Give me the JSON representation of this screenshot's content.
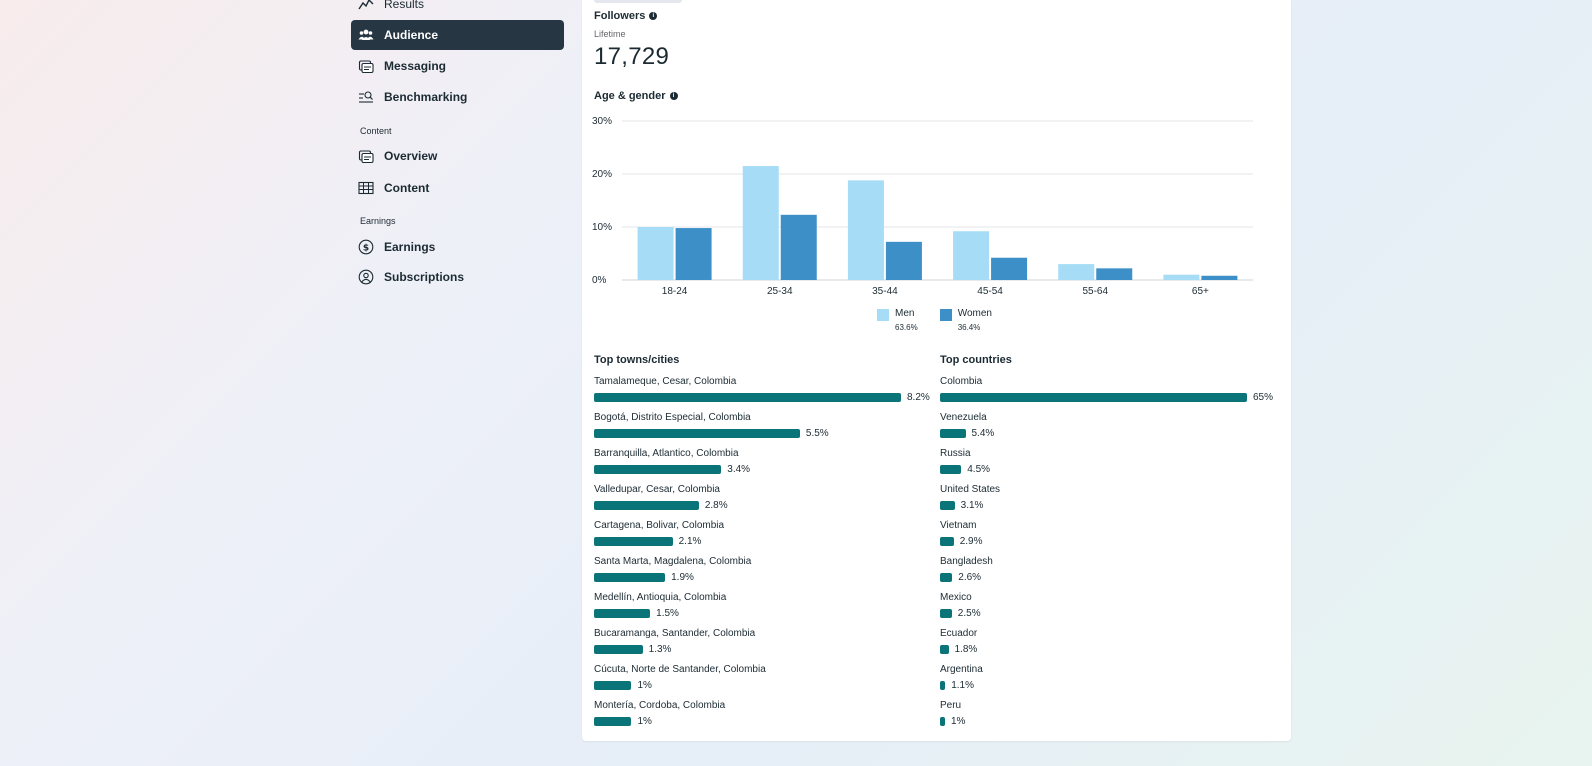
{
  "sidebar": {
    "items": [
      {
        "label": "Results",
        "icon": "results-icon",
        "active": false
      },
      {
        "label": "Audience",
        "icon": "audience-icon",
        "active": true
      },
      {
        "label": "Messaging",
        "icon": "messaging-icon",
        "active": false
      },
      {
        "label": "Benchmarking",
        "icon": "benchmarking-icon",
        "active": false
      }
    ],
    "content_section": "Content",
    "content_items": [
      {
        "label": "Overview",
        "icon": "overview-icon"
      },
      {
        "label": "Content",
        "icon": "table-icon"
      }
    ],
    "earnings_section": "Earnings",
    "earnings_items": [
      {
        "label": "Earnings",
        "icon": "dollar-icon"
      },
      {
        "label": "Subscriptions",
        "icon": "subscriptions-icon"
      }
    ]
  },
  "followers": {
    "title": "Followers",
    "period": "Lifetime",
    "value": "17,729"
  },
  "age_gender": {
    "title": "Age & gender"
  },
  "chart_data": {
    "type": "bar",
    "categories": [
      "18-24",
      "25-34",
      "35-44",
      "45-54",
      "55-64",
      "65+"
    ],
    "series": [
      {
        "name": "Men",
        "share": "63.6%",
        "color": "#a6dcf5",
        "values": [
          10,
          21.5,
          18.8,
          9.2,
          3,
          1
        ]
      },
      {
        "name": "Women",
        "share": "36.4%",
        "color": "#3d8fc8",
        "values": [
          9.8,
          12.3,
          7.2,
          4.2,
          2.2,
          0.8
        ]
      }
    ],
    "yticks": [
      "0%",
      "10%",
      "20%",
      "30%"
    ],
    "ylim": [
      0,
      30
    ],
    "grid": true,
    "legend": "bottom-center"
  },
  "top_cities": {
    "title": "Top towns/cities",
    "max": 8.2,
    "items": [
      {
        "label": "Tamalameque, Cesar, Colombia",
        "value": 8.2,
        "display": "8.2%"
      },
      {
        "label": "Bogotá, Distrito Especial, Colombia",
        "value": 5.5,
        "display": "5.5%"
      },
      {
        "label": "Barranquilla, Atlantico, Colombia",
        "value": 3.4,
        "display": "3.4%"
      },
      {
        "label": "Valledupar, Cesar, Colombia",
        "value": 2.8,
        "display": "2.8%"
      },
      {
        "label": "Cartagena, Bolivar, Colombia",
        "value": 2.1,
        "display": "2.1%"
      },
      {
        "label": "Santa Marta, Magdalena, Colombia",
        "value": 1.9,
        "display": "1.9%"
      },
      {
        "label": "Medellín, Antioquia, Colombia",
        "value": 1.5,
        "display": "1.5%"
      },
      {
        "label": "Bucaramanga, Santander, Colombia",
        "value": 1.3,
        "display": "1.3%"
      },
      {
        "label": "Cúcuta, Norte de Santander, Colombia",
        "value": 1,
        "display": "1%"
      },
      {
        "label": "Montería, Cordoba, Colombia",
        "value": 1,
        "display": "1%"
      }
    ]
  },
  "top_countries": {
    "title": "Top countries",
    "max": 65,
    "items": [
      {
        "label": "Colombia",
        "value": 65,
        "display": "65%"
      },
      {
        "label": "Venezuela",
        "value": 5.4,
        "display": "5.4%"
      },
      {
        "label": "Russia",
        "value": 4.5,
        "display": "4.5%"
      },
      {
        "label": "United States",
        "value": 3.1,
        "display": "3.1%"
      },
      {
        "label": "Vietnam",
        "value": 2.9,
        "display": "2.9%"
      },
      {
        "label": "Bangladesh",
        "value": 2.6,
        "display": "2.6%"
      },
      {
        "label": "Mexico",
        "value": 2.5,
        "display": "2.5%"
      },
      {
        "label": "Ecuador",
        "value": 1.8,
        "display": "1.8%"
      },
      {
        "label": "Argentina",
        "value": 1.1,
        "display": "1.1%"
      },
      {
        "label": "Peru",
        "value": 1,
        "display": "1%"
      }
    ]
  }
}
